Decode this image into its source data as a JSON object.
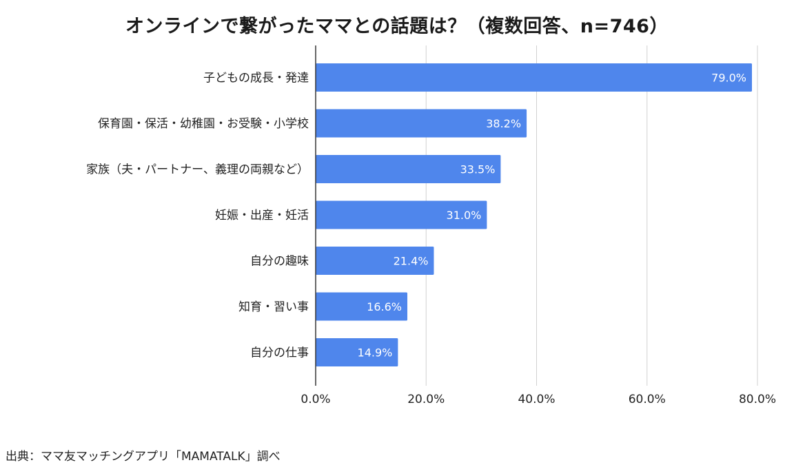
{
  "chart_data": {
    "type": "bar",
    "orientation": "horizontal",
    "title": "オンラインで繋がったママとの話題は？（複数回答、n=746）",
    "categories": [
      "子どもの成長・発達",
      "保育園・保活・幼稚園・お受験・小学校",
      "家族（夫・パートナー、義理の両親など）",
      "妊娠・出産・妊活",
      "自分の趣味",
      "知育・習い事",
      "自分の仕事"
    ],
    "values": [
      79.0,
      38.2,
      33.5,
      31.0,
      21.4,
      16.6,
      14.9
    ],
    "data_labels": [
      "79.0%",
      "38.2%",
      "33.5%",
      "31.0%",
      "21.4%",
      "16.6%",
      "14.9%"
    ],
    "xlim": [
      0,
      80
    ],
    "x_ticks": [
      0,
      20,
      40,
      60,
      80
    ],
    "x_tick_labels": [
      "0.0%",
      "20.0%",
      "40.0%",
      "60.0%",
      "80.0%"
    ],
    "xlabel": "",
    "ylabel": "",
    "grid": true,
    "legend": "none",
    "bar_color": "#4f86ec",
    "source": "出典：ママ友マッチングアプリ「MAMATALK」調べ"
  }
}
